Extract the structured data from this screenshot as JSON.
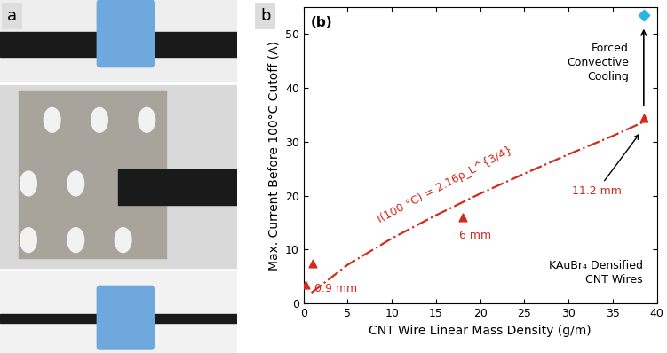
{
  "panel_labels": [
    "a",
    "b"
  ],
  "chart_data": {
    "type": "scatter",
    "title": "(b)",
    "x_label": "CNT Wire Linear Mass Density (g/m)",
    "y_label": "Max. Current Before 100°C Cutoff (A)",
    "xlim": [
      0,
      40
    ],
    "xticks": [
      0,
      5,
      10,
      15,
      20,
      25,
      30,
      35,
      40
    ],
    "ylim": [
      0,
      55
    ],
    "yticks": [
      0,
      10,
      20,
      30,
      40,
      50
    ],
    "grid": false,
    "series": [
      {
        "type": "line",
        "color": "#d42a1e",
        "line_style": "dashdot",
        "x": [
          0.9,
          5,
          10,
          15,
          20,
          25,
          30,
          35,
          38.5
        ],
        "values": [
          2.0,
          7.2,
          12.1,
          16.4,
          20.4,
          24.1,
          27.7,
          31.1,
          33.7
        ]
      },
      {
        "type": "scatter",
        "color": "#d42a1e",
        "marker": "^",
        "x": [
          0.2,
          1.0,
          18.0,
          38.5
        ],
        "values": [
          3.5,
          7.5,
          16.0,
          34.5
        ]
      },
      {
        "type": "scatter",
        "color": "#2bb5e3",
        "marker": "D",
        "x": [
          38.5
        ],
        "values": [
          53.5
        ]
      }
    ],
    "annotations": {
      "fit": "I(100 °C) = 2.16ρ_L^{3/4}",
      "d_small": "0.9 mm",
      "d_mid": "6 mm",
      "d_large": "11.2 mm",
      "cooling": "Forced\nConvective\nCooling",
      "material": "KAuBr₄ Densified\nCNT Wires"
    }
  }
}
